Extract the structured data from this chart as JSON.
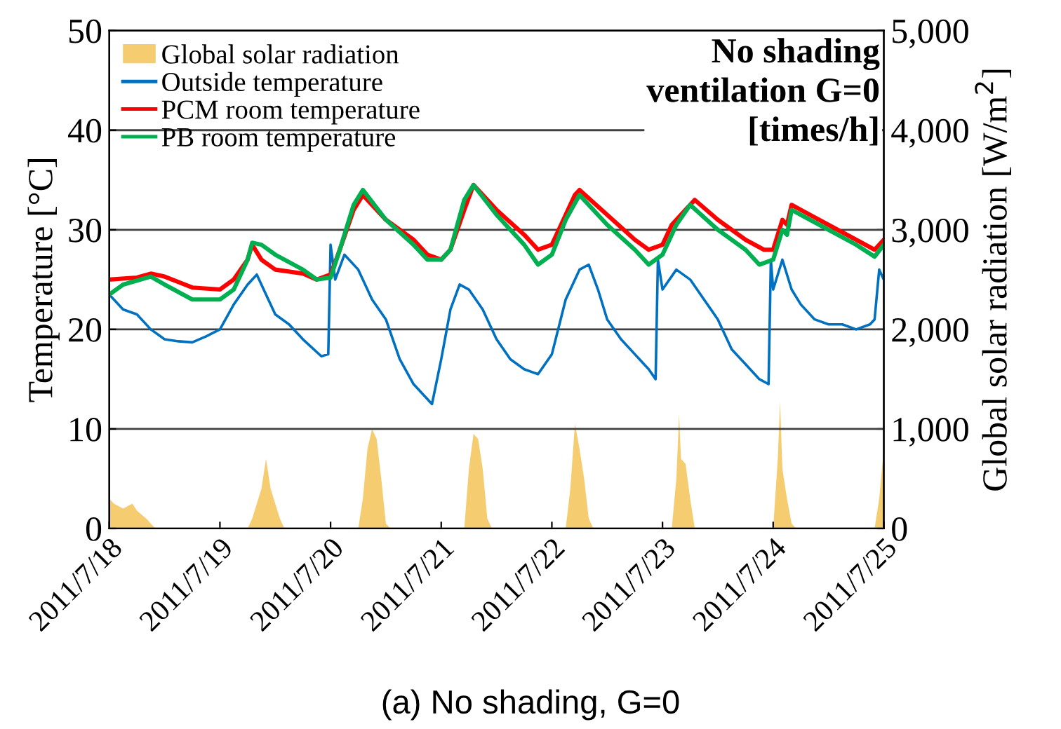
{
  "chart_data": {
    "type": "line",
    "xlim": [
      "2011-07-18T00:00",
      "2011-07-25T00:00"
    ],
    "xticks": [
      {
        "value": "2011-07-18",
        "label": "2011/7/18"
      },
      {
        "value": "2011-07-19",
        "label": "2011/7/19"
      },
      {
        "value": "2011-07-20",
        "label": "2011/7/20"
      },
      {
        "value": "2011-07-21",
        "label": "2011/7/21"
      },
      {
        "value": "2011-07-22",
        "label": "2011/7/22"
      },
      {
        "value": "2011-07-23",
        "label": "2011/7/23"
      },
      {
        "value": "2011-07-24",
        "label": "2011/7/24"
      },
      {
        "value": "2011-07-25",
        "label": "2011/7/25"
      }
    ],
    "ylim": [
      0,
      50
    ],
    "yticks": [
      0,
      10,
      20,
      30,
      40,
      50
    ],
    "y2lim": [
      0,
      5000
    ],
    "y2ticks": [
      0,
      {
        "value": 1000,
        "label": "1,000"
      },
      {
        "value": 2000,
        "label": "2,000"
      },
      {
        "value": 3000,
        "label": "3,000"
      },
      {
        "value": 4000,
        "label": "4,000"
      },
      {
        "value": 5000,
        "label": "5,000"
      }
    ],
    "ylabel": "Temperature [°C]",
    "y2label": "Global solar radiation [W/m$^{2}$]",
    "grid": "y",
    "legend": "top left",
    "annotations": [
      "No shading\nventilation G=0\n[times/h]",
      "(a) No shading, G=0"
    ],
    "series": [
      {
        "name": "Global solar radiation",
        "type": "area",
        "axis": "y2",
        "color": "#f5cd70",
        "x": [
          "2011-07-18T00:00",
          "2011-07-18T01:00",
          "2011-07-18T03:00",
          "2011-07-18T05:00",
          "2011-07-18T06:00",
          "2011-07-18T08:00",
          "2011-07-18T10:00",
          "2011-07-19T06:00",
          "2011-07-19T07:00",
          "2011-07-19T09:00",
          "2011-07-19T10:00",
          "2011-07-19T11:00",
          "2011-07-19T13:00",
          "2011-07-19T14:00",
          "2011-07-20T06:00",
          "2011-07-20T07:00",
          "2011-07-20T08:00",
          "2011-07-20T09:00",
          "2011-07-20T10:00",
          "2011-07-20T11:00",
          "2011-07-20T12:00",
          "2011-07-20T13:00",
          "2011-07-21T05:00",
          "2011-07-21T06:00",
          "2011-07-21T07:00",
          "2011-07-21T08:00",
          "2011-07-21T09:00",
          "2011-07-21T10:00",
          "2011-07-21T11:00",
          "2011-07-22T03:00",
          "2011-07-22T04:00",
          "2011-07-22T05:00",
          "2011-07-22T06:00",
          "2011-07-22T07:00",
          "2011-07-22T08:00",
          "2011-07-22T09:00",
          "2011-07-23T02:00",
          "2011-07-23T03:00",
          "2011-07-23T03:36",
          "2011-07-23T04:00",
          "2011-07-23T05:00",
          "2011-07-23T06:00",
          "2011-07-23T07:00",
          "2011-07-24T00:00",
          "2011-07-24T01:00",
          "2011-07-24T01:30",
          "2011-07-24T02:00",
          "2011-07-24T03:00",
          "2011-07-24T04:00",
          "2011-07-24T05:00",
          "2011-07-24T22:00",
          "2011-07-24T23:00",
          "2011-07-25T00:00"
        ],
        "values": [
          300,
          250,
          200,
          250,
          180,
          100,
          0,
          0,
          100,
          400,
          700,
          400,
          100,
          0,
          0,
          300,
          800,
          1000,
          900,
          500,
          50,
          0,
          0,
          600,
          950,
          900,
          600,
          100,
          0,
          0,
          400,
          1050,
          800,
          500,
          100,
          0,
          0,
          500,
          1150,
          700,
          650,
          300,
          0,
          0,
          700,
          1280,
          600,
          300,
          50,
          0,
          0,
          300,
          800
        ]
      },
      {
        "name": "Outside temperature",
        "color": "#0070c0",
        "x": [
          "2011-07-18T00:00",
          "2011-07-18T03:00",
          "2011-07-18T06:00",
          "2011-07-18T09:00",
          "2011-07-18T12:00",
          "2011-07-18T15:00",
          "2011-07-18T18:00",
          "2011-07-18T21:00",
          "2011-07-19T00:00",
          "2011-07-19T03:00",
          "2011-07-19T06:00",
          "2011-07-19T08:00",
          "2011-07-19T10:00",
          "2011-07-19T12:00",
          "2011-07-19T15:00",
          "2011-07-19T18:00",
          "2011-07-19T22:00",
          "2011-07-19T23:30",
          "2011-07-20T00:00",
          "2011-07-20T01:00",
          "2011-07-20T03:00",
          "2011-07-20T06:00",
          "2011-07-20T09:00",
          "2011-07-20T12:00",
          "2011-07-20T15:00",
          "2011-07-20T18:00",
          "2011-07-20T22:00",
          "2011-07-21T00:00",
          "2011-07-21T02:00",
          "2011-07-21T04:00",
          "2011-07-21T06:00",
          "2011-07-21T09:00",
          "2011-07-21T12:00",
          "2011-07-21T15:00",
          "2011-07-21T18:00",
          "2011-07-21T21:00",
          "2011-07-22T00:00",
          "2011-07-22T03:00",
          "2011-07-22T06:00",
          "2011-07-22T08:00",
          "2011-07-22T10:00",
          "2011-07-22T12:00",
          "2011-07-22T15:00",
          "2011-07-22T18:00",
          "2011-07-22T21:00",
          "2011-07-22T22:30",
          "2011-07-22T23:00",
          "2011-07-23T00:00",
          "2011-07-23T03:00",
          "2011-07-23T06:00",
          "2011-07-23T09:00",
          "2011-07-23T12:00",
          "2011-07-23T15:00",
          "2011-07-23T18:00",
          "2011-07-23T21:00",
          "2011-07-23T23:00",
          "2011-07-23T23:30",
          "2011-07-24T00:00",
          "2011-07-24T02:00",
          "2011-07-24T04:00",
          "2011-07-24T06:00",
          "2011-07-24T09:00",
          "2011-07-24T12:00",
          "2011-07-24T15:00",
          "2011-07-24T18:00",
          "2011-07-24T21:00",
          "2011-07-24T22:00",
          "2011-07-24T23:00",
          "2011-07-25T00:00"
        ],
        "values": [
          23.5,
          22,
          21.5,
          20,
          19,
          18.8,
          18.7,
          19.3,
          20,
          22.5,
          24.5,
          25.5,
          23.5,
          21.5,
          20.5,
          19,
          17.3,
          17.5,
          28.5,
          25,
          27.5,
          26,
          23,
          21,
          17,
          14.5,
          12.5,
          17,
          22,
          24.5,
          24,
          22,
          19,
          17,
          16,
          15.5,
          17.5,
          23,
          26,
          26.5,
          24,
          21,
          19,
          17.5,
          16,
          15,
          27,
          24,
          26,
          25,
          23,
          21,
          18,
          16.5,
          15,
          14.5,
          27,
          24,
          27,
          24,
          22.5,
          21,
          20.5,
          20.5,
          20,
          20.5,
          21,
          26,
          25
        ]
      },
      {
        "name": "PCM room temperature",
        "color": "#ff0000",
        "x": [
          "2011-07-18T00:00",
          "2011-07-18T06:00",
          "2011-07-18T09:00",
          "2011-07-18T12:00",
          "2011-07-18T18:00",
          "2011-07-19T00:00",
          "2011-07-19T03:00",
          "2011-07-19T06:00",
          "2011-07-19T07:00",
          "2011-07-19T09:00",
          "2011-07-19T12:00",
          "2011-07-19T18:00",
          "2011-07-19T21:00",
          "2011-07-20T00:00",
          "2011-07-20T02:00",
          "2011-07-20T05:00",
          "2011-07-20T07:00",
          "2011-07-20T12:00",
          "2011-07-20T18:00",
          "2011-07-20T21:00",
          "2011-07-21T00:00",
          "2011-07-21T02:00",
          "2011-07-21T05:00",
          "2011-07-21T07:00",
          "2011-07-21T12:00",
          "2011-07-21T18:00",
          "2011-07-21T21:00",
          "2011-07-22T00:00",
          "2011-07-22T03:00",
          "2011-07-22T05:00",
          "2011-07-22T06:00",
          "2011-07-22T12:00",
          "2011-07-22T18:00",
          "2011-07-22T21:00",
          "2011-07-23T00:00",
          "2011-07-23T02:00",
          "2011-07-23T05:00",
          "2011-07-23T07:00",
          "2011-07-23T12:00",
          "2011-07-23T18:00",
          "2011-07-23T22:00",
          "2011-07-24T00:00",
          "2011-07-24T02:00",
          "2011-07-24T03:00",
          "2011-07-24T04:00",
          "2011-07-24T06:00",
          "2011-07-24T12:00",
          "2011-07-24T18:00",
          "2011-07-24T22:00",
          "2011-07-25T00:00"
        ],
        "values": [
          25,
          25.2,
          25.6,
          25.3,
          24.2,
          24,
          25,
          27,
          28.5,
          27,
          26,
          25.6,
          25,
          25.5,
          28,
          32,
          33.5,
          31,
          29,
          27.5,
          27,
          28,
          32,
          34.5,
          32,
          29.5,
          28,
          28.5,
          31.5,
          33.5,
          34,
          31.5,
          29,
          28,
          28.5,
          30.5,
          32,
          33,
          31,
          29,
          28,
          28,
          31,
          30.5,
          32.5,
          32,
          30.5,
          29,
          28,
          29
        ]
      },
      {
        "name": "PB room temperature",
        "color": "#00b050",
        "x": [
          "2011-07-18T00:00",
          "2011-07-18T03:00",
          "2011-07-18T09:00",
          "2011-07-18T12:00",
          "2011-07-18T18:00",
          "2011-07-19T00:00",
          "2011-07-19T03:00",
          "2011-07-19T06:00",
          "2011-07-19T07:00",
          "2011-07-19T09:00",
          "2011-07-19T12:00",
          "2011-07-19T18:00",
          "2011-07-19T21:00",
          "2011-07-20T00:00",
          "2011-07-20T02:00",
          "2011-07-20T05:00",
          "2011-07-20T07:00",
          "2011-07-20T12:00",
          "2011-07-20T18:00",
          "2011-07-20T21:00",
          "2011-07-21T00:00",
          "2011-07-21T02:00",
          "2011-07-21T05:00",
          "2011-07-21T07:00",
          "2011-07-21T12:00",
          "2011-07-21T18:00",
          "2011-07-21T21:00",
          "2011-07-22T00:00",
          "2011-07-22T03:00",
          "2011-07-22T06:00",
          "2011-07-22T12:00",
          "2011-07-22T18:00",
          "2011-07-22T21:00",
          "2011-07-23T00:00",
          "2011-07-23T03:00",
          "2011-07-23T06:00",
          "2011-07-23T12:00",
          "2011-07-23T18:00",
          "2011-07-23T21:00",
          "2011-07-24T00:00",
          "2011-07-24T02:00",
          "2011-07-24T03:00",
          "2011-07-24T04:00",
          "2011-07-24T06:00",
          "2011-07-24T12:00",
          "2011-07-24T18:00",
          "2011-07-24T22:00",
          "2011-07-25T00:00"
        ],
        "values": [
          23.5,
          24.5,
          25.3,
          24.5,
          23,
          23,
          24,
          27,
          28.7,
          28.5,
          27.5,
          26,
          25,
          25.2,
          28,
          32.5,
          34,
          31,
          28.5,
          27,
          27,
          28,
          33,
          34.5,
          31.5,
          28.5,
          26.5,
          27.5,
          31,
          33.5,
          30.5,
          28,
          26.5,
          27.5,
          30.5,
          32.5,
          30,
          28,
          26.5,
          27,
          30,
          29.5,
          32,
          31.5,
          30,
          28.5,
          27.3,
          28.5
        ]
      }
    ]
  }
}
